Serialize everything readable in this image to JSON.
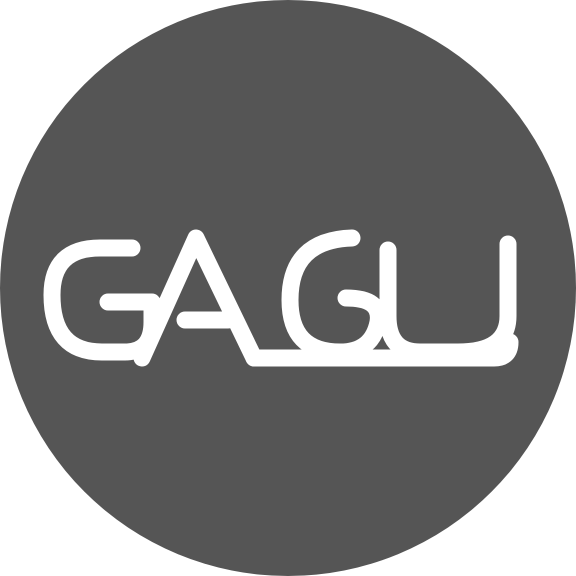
{
  "logo": {
    "wordmark": "GAGU",
    "colors": {
      "circle": "#555555",
      "lettering": "#ffffff",
      "background": "#ffffff"
    }
  }
}
